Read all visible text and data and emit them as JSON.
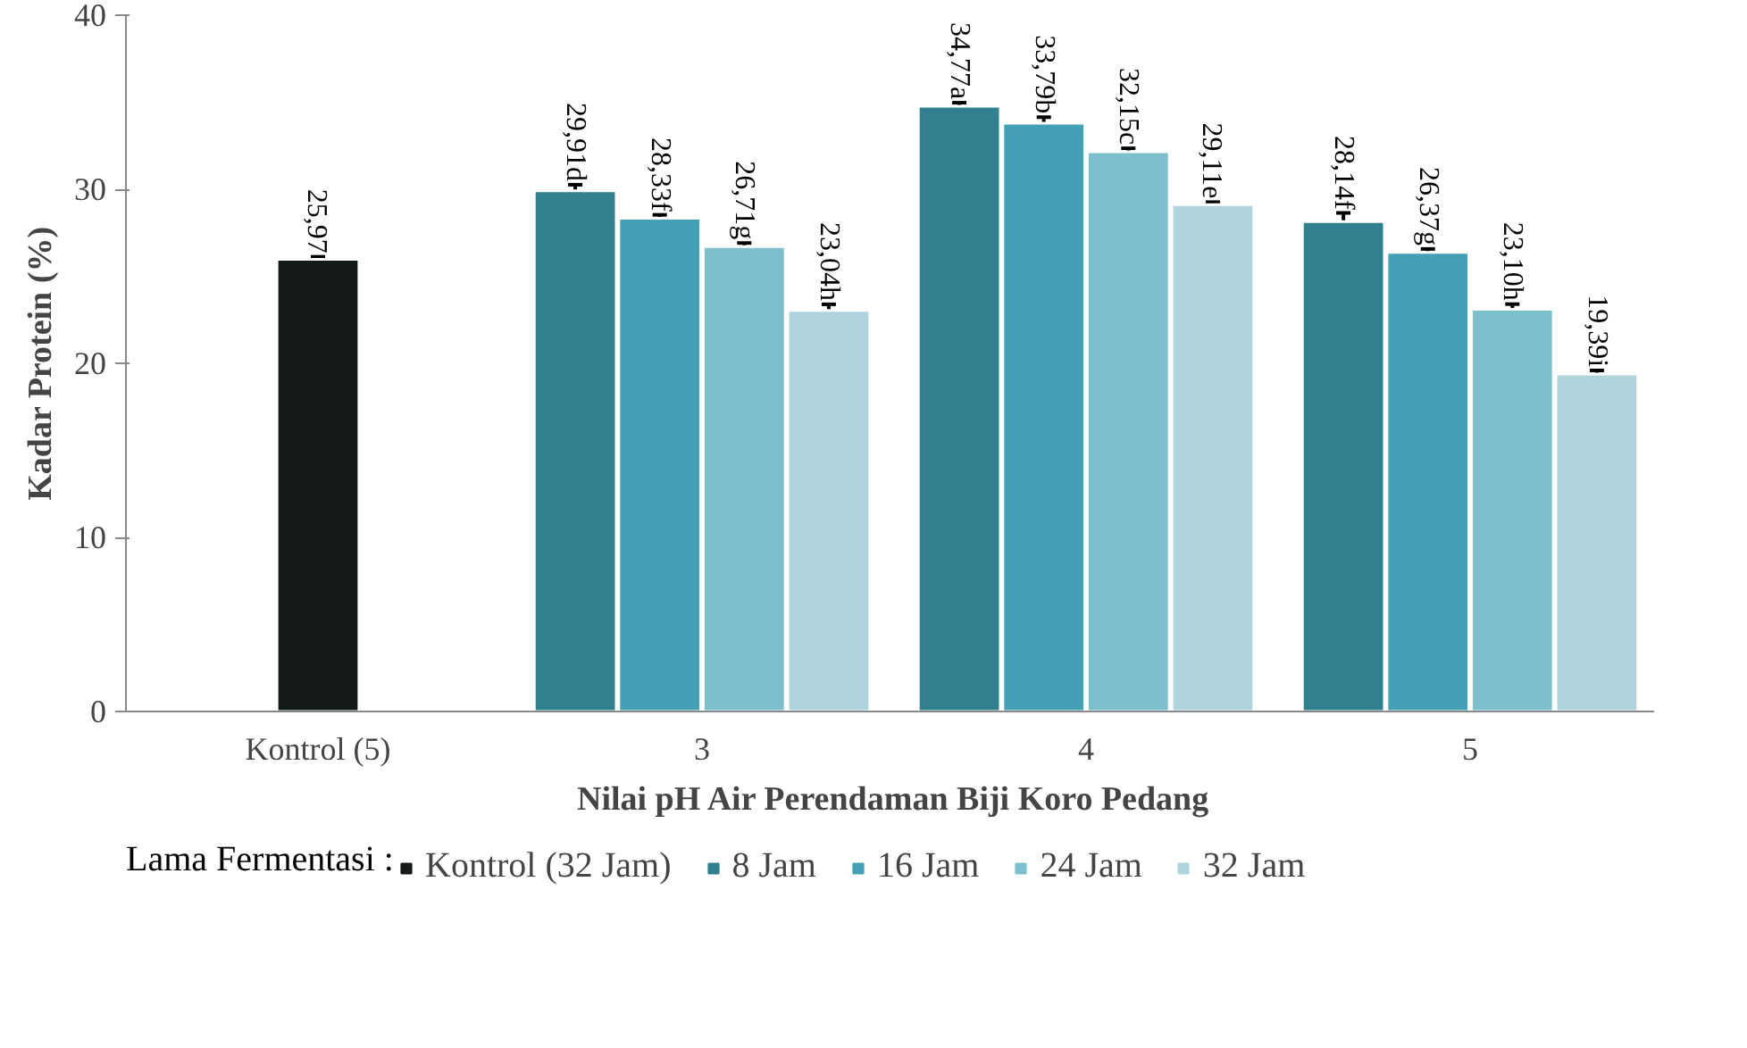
{
  "chart_data": {
    "type": "bar",
    "xlabel": "Nilai pH Air Perendaman Biji Koro Pedang",
    "ylabel": "Kadar Protein (%)",
    "legend_title": "Lama Fermentasi :",
    "categories": [
      "Kontrol (5)",
      "3",
      "4",
      "5"
    ],
    "ylim": [
      0,
      40
    ],
    "yticks": [
      0,
      10,
      20,
      30,
      40
    ],
    "grid": false,
    "legend": "bottom",
    "series": [
      {
        "name": "Kontrol (32 Jam)",
        "color": "#141a18",
        "values": [
          25.97,
          null,
          null,
          null
        ],
        "errors": [
          0.15,
          null,
          null,
          null
        ],
        "value_labels": [
          "25,97",
          null,
          null,
          null
        ]
      },
      {
        "name": "8 Jam",
        "color": "#31808f",
        "values": [
          null,
          29.91,
          34.77,
          28.14
        ],
        "errors": [
          null,
          0.35,
          0.2,
          0.5
        ],
        "value_labels": [
          null,
          "29,91d",
          "34,77a",
          "28,14f"
        ]
      },
      {
        "name": "16 Jam",
        "color": "#43a0b5",
        "values": [
          null,
          28.33,
          33.79,
          26.37
        ],
        "errors": [
          null,
          0.2,
          0.35,
          0.2
        ],
        "value_labels": [
          null,
          "28,33f",
          "33,79b",
          "26,37g"
        ]
      },
      {
        "name": "24 Jam",
        "color": "#7dbfcd",
        "values": [
          null,
          26.71,
          32.15,
          23.1
        ],
        "errors": [
          null,
          0.2,
          0.2,
          0.3
        ],
        "value_labels": [
          null,
          "26,71g",
          "32,15c",
          "23,10h"
        ]
      },
      {
        "name": "32 Jam",
        "color": "#b0d4de",
        "values": [
          null,
          23.04,
          29.11,
          19.39
        ],
        "errors": [
          null,
          0.35,
          0.15,
          0.2
        ],
        "value_labels": [
          null,
          "23,04h",
          "29,11e",
          "19,39i"
        ]
      }
    ]
  }
}
